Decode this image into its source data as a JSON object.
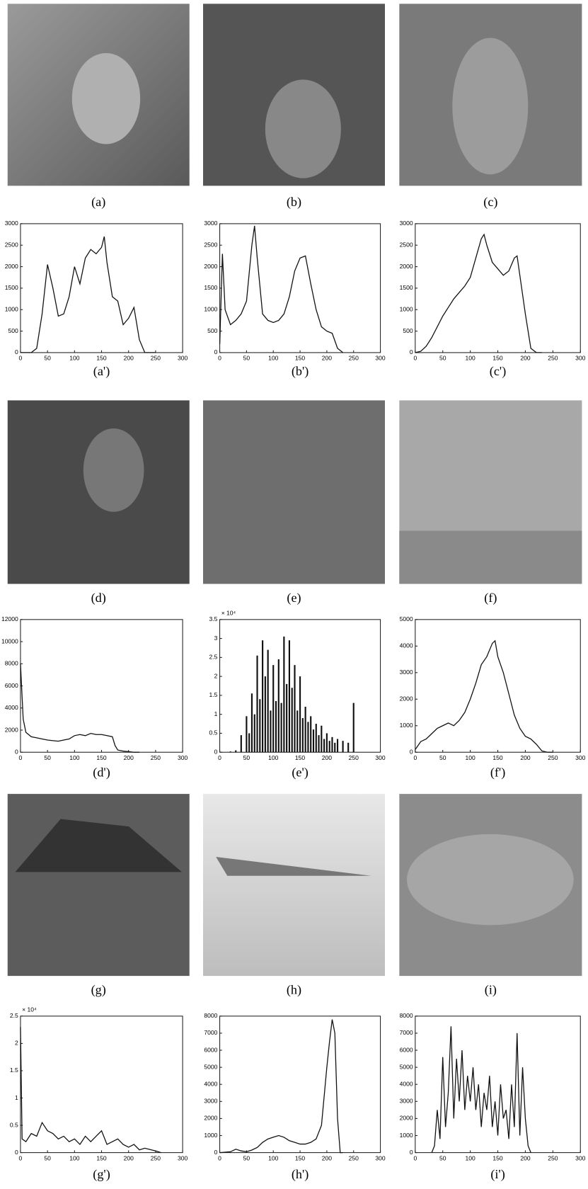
{
  "figures": [
    {
      "caption": "(a)"
    },
    {
      "caption": "(b)"
    },
    {
      "caption": "(c)"
    },
    {
      "caption": "(d)"
    },
    {
      "caption": "(e)"
    },
    {
      "caption": "(f)"
    },
    {
      "caption": "(g)"
    },
    {
      "caption": "(h)"
    },
    {
      "caption": "(i)"
    }
  ],
  "chart_data": [
    {
      "type": "line",
      "caption": "(a')",
      "color": "#111",
      "x": [
        0,
        10,
        20,
        30,
        40,
        50,
        60,
        70,
        80,
        90,
        100,
        110,
        120,
        130,
        140,
        150,
        155,
        160,
        170,
        180,
        190,
        200,
        210,
        220,
        230,
        240,
        250
      ],
      "values": [
        0,
        0,
        0,
        100,
        900,
        2050,
        1500,
        850,
        900,
        1300,
        2000,
        1600,
        2200,
        2400,
        2300,
        2450,
        2700,
        2100,
        1300,
        1200,
        650,
        800,
        1050,
        300,
        0,
        0,
        0
      ],
      "xlim": [
        0,
        300
      ],
      "xticks": [
        0,
        50,
        100,
        150,
        200,
        250,
        300
      ],
      "ylim": [
        0,
        3000
      ],
      "yticks": [
        0,
        500,
        1000,
        1500,
        2000,
        2500,
        3000
      ]
    },
    {
      "type": "line",
      "caption": "(b')",
      "color": "#111",
      "x": [
        0,
        5,
        10,
        20,
        30,
        40,
        50,
        60,
        65,
        70,
        80,
        90,
        100,
        110,
        120,
        130,
        140,
        150,
        160,
        170,
        180,
        190,
        200,
        210,
        220,
        230
      ],
      "values": [
        200,
        2300,
        1000,
        650,
        750,
        900,
        1200,
        2500,
        2950,
        2200,
        900,
        750,
        700,
        750,
        900,
        1300,
        1900,
        2200,
        2250,
        1600,
        1000,
        600,
        500,
        450,
        100,
        0
      ],
      "xlim": [
        0,
        300
      ],
      "xticks": [
        0,
        50,
        100,
        150,
        200,
        250,
        300
      ],
      "ylim": [
        0,
        3000
      ],
      "yticks": [
        0,
        500,
        1000,
        1500,
        2000,
        2500,
        3000
      ]
    },
    {
      "type": "line",
      "caption": "(c')",
      "color": "#111",
      "x": [
        0,
        10,
        20,
        30,
        40,
        50,
        60,
        70,
        80,
        90,
        100,
        110,
        120,
        125,
        130,
        140,
        150,
        160,
        170,
        180,
        185,
        190,
        200,
        210,
        220,
        230
      ],
      "values": [
        0,
        30,
        150,
        350,
        600,
        850,
        1050,
        1250,
        1400,
        1550,
        1750,
        2200,
        2650,
        2750,
        2500,
        2100,
        1950,
        1800,
        1900,
        2200,
        2250,
        1800,
        900,
        100,
        0,
        0
      ],
      "xlim": [
        0,
        300
      ],
      "xticks": [
        0,
        50,
        100,
        150,
        200,
        250,
        300
      ],
      "ylim": [
        0,
        3000
      ],
      "yticks": [
        0,
        500,
        1000,
        1500,
        2000,
        2500,
        3000
      ]
    },
    {
      "type": "line",
      "caption": "(d')",
      "color": "#111",
      "x": [
        0,
        5,
        10,
        20,
        30,
        40,
        50,
        60,
        70,
        80,
        90,
        100,
        110,
        120,
        130,
        140,
        150,
        160,
        170,
        175,
        180,
        190,
        200,
        210,
        220
      ],
      "values": [
        8000,
        3000,
        1800,
        1400,
        1300,
        1200,
        1100,
        1050,
        1000,
        1100,
        1200,
        1500,
        1600,
        1500,
        1700,
        1600,
        1600,
        1500,
        1400,
        600,
        200,
        100,
        50,
        0,
        0
      ],
      "xlim": [
        0,
        300
      ],
      "xticks": [
        0,
        50,
        100,
        150,
        200,
        250,
        300
      ],
      "ylim": [
        0,
        12000
      ],
      "yticks": [
        0,
        2000,
        4000,
        6000,
        8000,
        10000,
        12000
      ]
    },
    {
      "type": "bar",
      "caption": "(e')",
      "color": "#111",
      "y_multiplier": "× 10⁴",
      "x": [
        20,
        30,
        40,
        50,
        55,
        60,
        65,
        70,
        75,
        80,
        85,
        90,
        95,
        100,
        105,
        110,
        115,
        120,
        125,
        130,
        135,
        140,
        145,
        150,
        155,
        160,
        165,
        170,
        175,
        180,
        185,
        190,
        195,
        200,
        205,
        210,
        215,
        220,
        230,
        240,
        250
      ],
      "values": [
        200,
        500,
        4500,
        9500,
        5000,
        15500,
        10000,
        25500,
        14000,
        29500,
        20000,
        27000,
        11000,
        23000,
        13500,
        24500,
        13000,
        30500,
        18000,
        29500,
        17000,
        23000,
        11000,
        20000,
        9000,
        12000,
        8000,
        9500,
        6000,
        7500,
        4500,
        7000,
        3500,
        5000,
        3000,
        4000,
        2500,
        3500,
        3000,
        2500,
        13000
      ],
      "xlim": [
        0,
        300
      ],
      "xticks": [
        0,
        50,
        100,
        150,
        200,
        250,
        300
      ],
      "ylim": [
        0,
        35000
      ],
      "yticks": [
        0,
        {
          "value": 5000,
          "label": "0.5"
        },
        {
          "value": 10000,
          "label": "1"
        },
        {
          "value": 15000,
          "label": "1.5"
        },
        {
          "value": 20000,
          "label": "2"
        },
        {
          "value": 25000,
          "label": "2.5"
        },
        {
          "value": 30000,
          "label": "3"
        },
        {
          "value": 35000,
          "label": "3.5"
        }
      ]
    },
    {
      "type": "line",
      "caption": "(f')",
      "color": "#111",
      "x": [
        0,
        10,
        20,
        30,
        40,
        50,
        60,
        70,
        80,
        90,
        100,
        110,
        120,
        130,
        140,
        145,
        150,
        160,
        170,
        180,
        190,
        200,
        210,
        220,
        230,
        240,
        250
      ],
      "values": [
        100,
        400,
        500,
        700,
        900,
        1000,
        1100,
        1000,
        1200,
        1500,
        2000,
        2600,
        3300,
        3600,
        4100,
        4200,
        3600,
        3000,
        2200,
        1400,
        900,
        600,
        500,
        300,
        50,
        0,
        0
      ],
      "xlim": [
        0,
        300
      ],
      "xticks": [
        0,
        50,
        100,
        150,
        200,
        250,
        300
      ],
      "ylim": [
        0,
        5000
      ],
      "yticks": [
        0,
        1000,
        2000,
        3000,
        4000,
        5000
      ]
    },
    {
      "type": "line",
      "caption": "(g')",
      "color": "#111",
      "y_multiplier": "× 10⁴",
      "x": [
        0,
        3,
        10,
        20,
        30,
        40,
        50,
        60,
        70,
        80,
        90,
        100,
        110,
        120,
        130,
        140,
        150,
        160,
        170,
        180,
        190,
        200,
        210,
        220,
        230,
        250,
        260
      ],
      "values": [
        23000,
        2500,
        2000,
        3500,
        3000,
        5500,
        4000,
        3500,
        2500,
        3000,
        2000,
        2500,
        1500,
        3000,
        2000,
        3000,
        4000,
        1500,
        2000,
        2500,
        1500,
        1000,
        1500,
        500,
        800,
        300,
        0
      ],
      "xlim": [
        0,
        300
      ],
      "xticks": [
        0,
        50,
        100,
        150,
        200,
        250,
        300
      ],
      "ylim": [
        0,
        25000
      ],
      "yticks": [
        0,
        {
          "value": 5000,
          "label": "0.5"
        },
        {
          "value": 10000,
          "label": "1"
        },
        {
          "value": 15000,
          "label": "1.5"
        },
        {
          "value": 20000,
          "label": "2"
        },
        {
          "value": 25000,
          "label": "2.5"
        }
      ]
    },
    {
      "type": "line",
      "caption": "(h')",
      "color": "#111",
      "x": [
        0,
        20,
        30,
        40,
        50,
        60,
        70,
        80,
        90,
        100,
        110,
        120,
        130,
        140,
        150,
        160,
        170,
        180,
        190,
        200,
        205,
        210,
        215,
        220,
        225,
        230
      ],
      "values": [
        0,
        50,
        200,
        100,
        50,
        150,
        300,
        600,
        800,
        900,
        1000,
        900,
        700,
        600,
        500,
        500,
        600,
        800,
        1600,
        5000,
        6500,
        7800,
        7000,
        2000,
        0,
        0
      ],
      "xlim": [
        0,
        300
      ],
      "xticks": [
        0,
        50,
        100,
        150,
        200,
        250,
        300
      ],
      "ylim": [
        0,
        8000
      ],
      "yticks": [
        0,
        1000,
        2000,
        3000,
        4000,
        5000,
        6000,
        7000,
        8000
      ]
    },
    {
      "type": "line",
      "caption": "(i')",
      "color": "#111",
      "x": [
        30,
        35,
        40,
        45,
        50,
        55,
        60,
        65,
        70,
        75,
        80,
        85,
        90,
        95,
        100,
        105,
        110,
        115,
        120,
        125,
        130,
        135,
        140,
        145,
        150,
        155,
        160,
        165,
        170,
        175,
        180,
        185,
        190,
        195,
        200,
        205,
        210
      ],
      "values": [
        0,
        400,
        2500,
        800,
        5600,
        1500,
        3500,
        7400,
        2000,
        5500,
        3000,
        6000,
        2500,
        4500,
        3000,
        5000,
        2500,
        4000,
        1500,
        3500,
        2500,
        4500,
        1500,
        3000,
        1000,
        4000,
        2000,
        2500,
        800,
        4000,
        1500,
        7000,
        1000,
        5000,
        2000,
        400,
        0
      ],
      "xlim": [
        0,
        300
      ],
      "xticks": [
        0,
        50,
        100,
        150,
        200,
        250,
        300
      ],
      "ylim": [
        0,
        8000
      ],
      "yticks": [
        0,
        1000,
        2000,
        3000,
        4000,
        5000,
        6000,
        7000,
        8000
      ]
    }
  ]
}
